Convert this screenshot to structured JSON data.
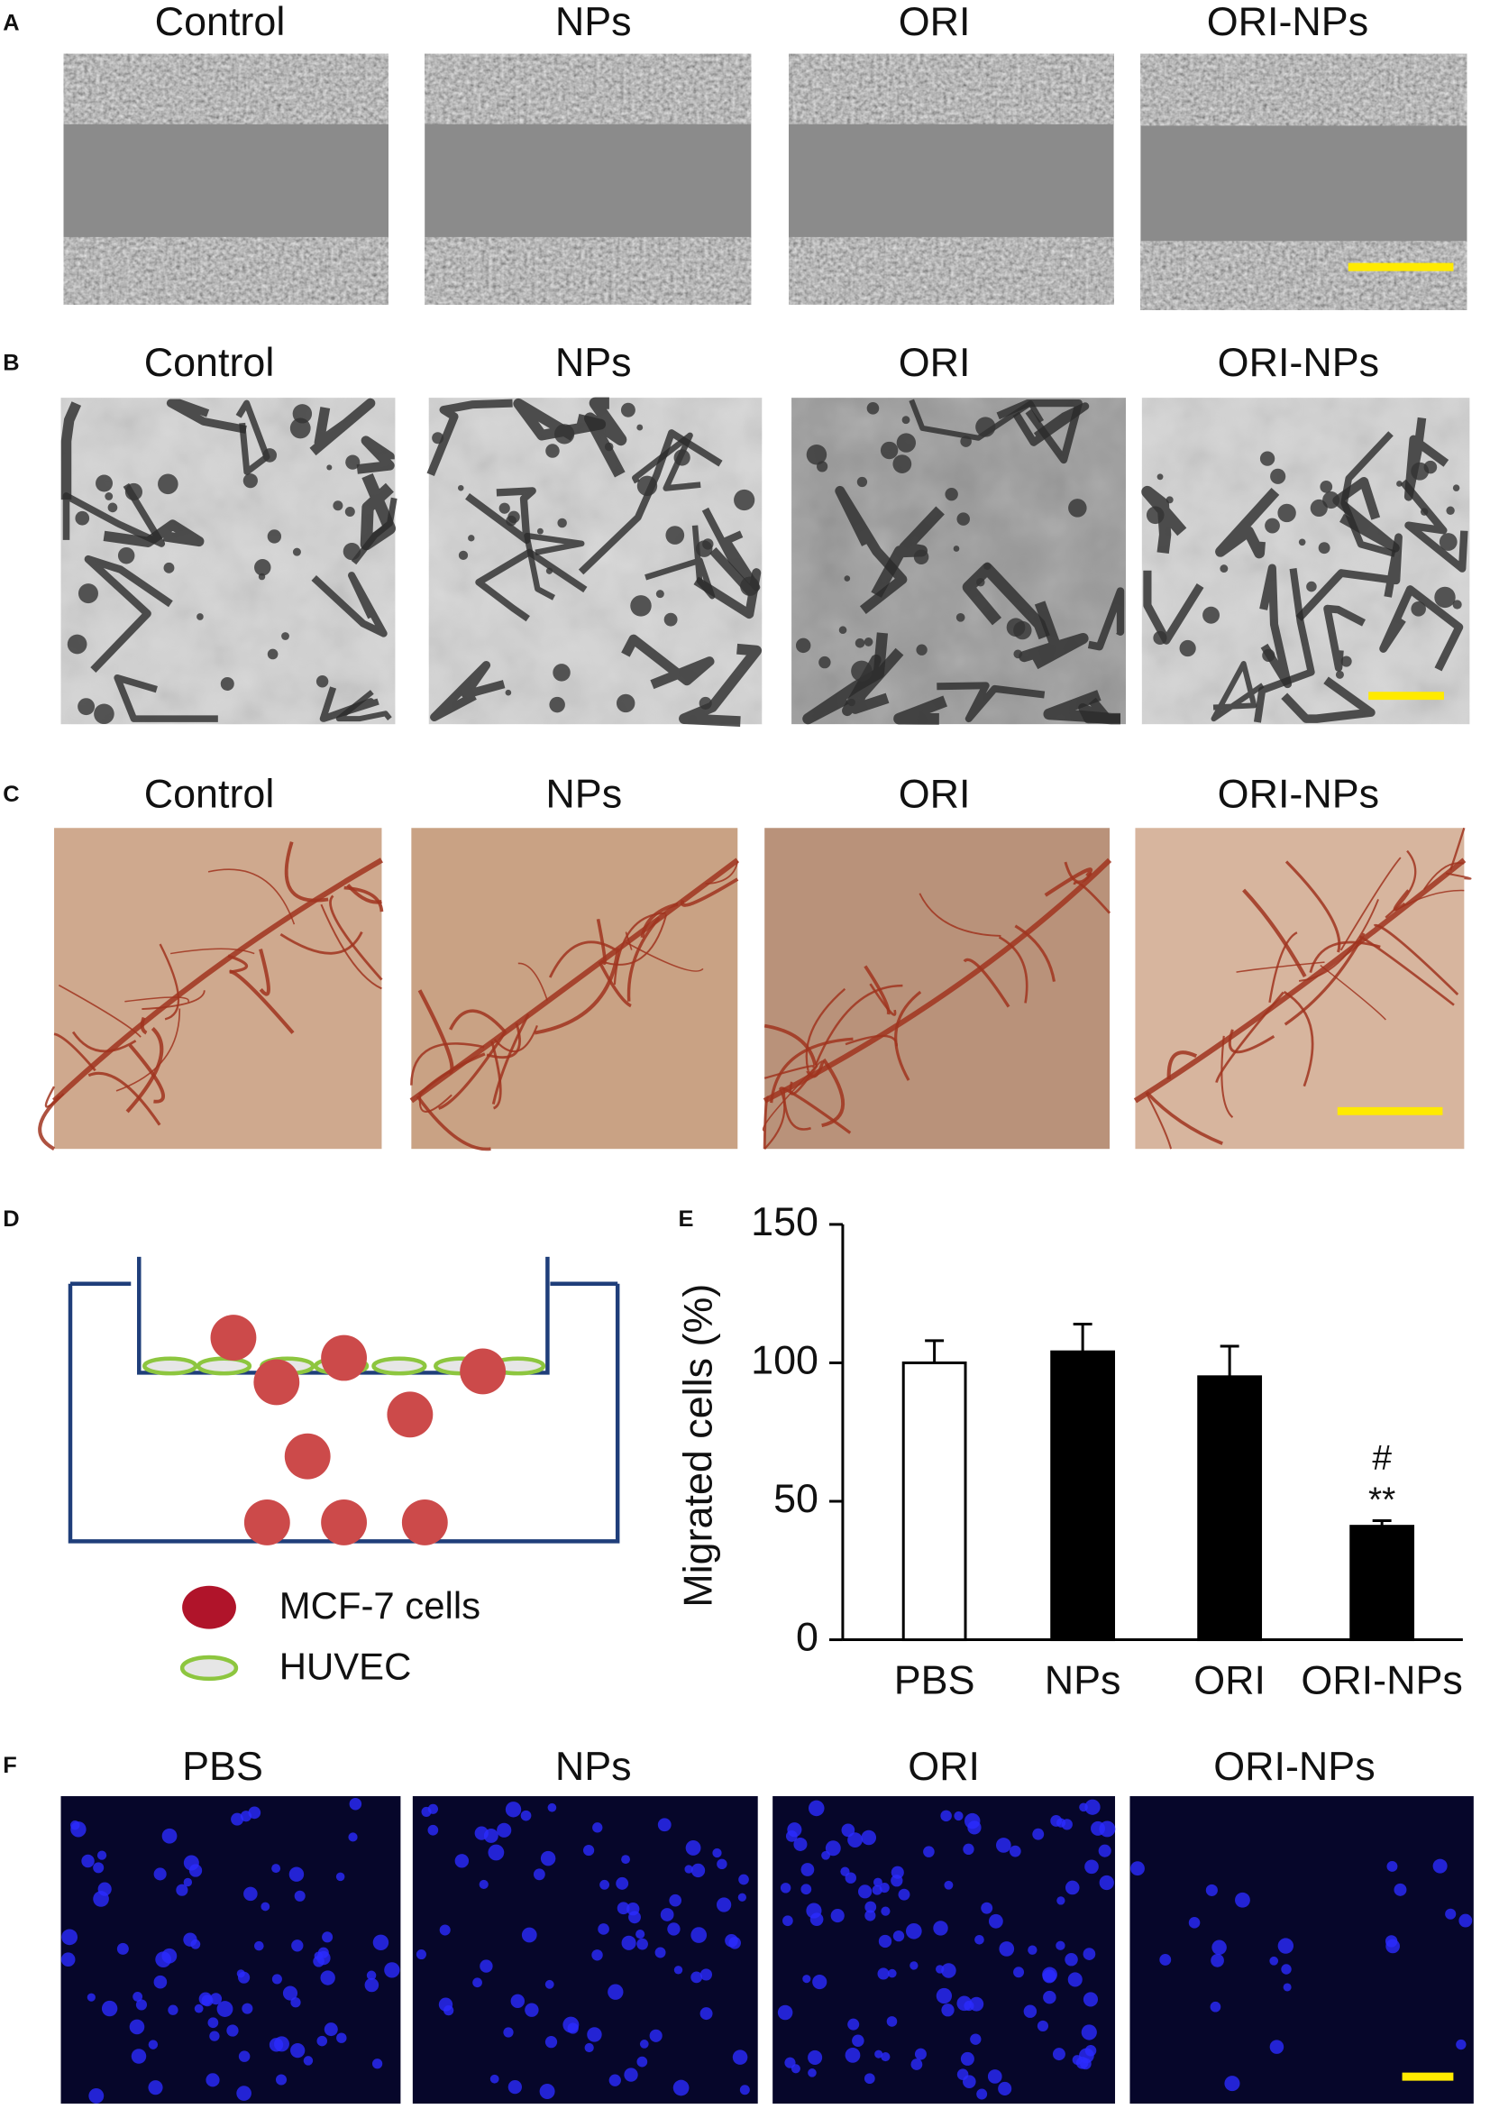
{
  "panel_a": {
    "label": "A",
    "titles": [
      "Control",
      "NPs",
      "ORI",
      "ORI-NPs"
    ]
  },
  "panel_b": {
    "label": "B",
    "titles": [
      "Control",
      "NPs",
      "ORI",
      "ORI-NPs"
    ]
  },
  "panel_c": {
    "label": "C",
    "titles": [
      "Control",
      "NPs",
      "ORI",
      "ORI-NPs"
    ]
  },
  "panel_d": {
    "label": "D",
    "legend": [
      "MCF-7 cells",
      "HUVEC"
    ]
  },
  "chart_data": {
    "type": "bar",
    "label": "E",
    "ylabel": "Migrated cells (%)",
    "categories": [
      "PBS",
      "NPs",
      "ORI",
      "ORI-NPs"
    ],
    "values": [
      100,
      104,
      95,
      41
    ],
    "errors": [
      8,
      10,
      11,
      2
    ],
    "colors": [
      "#ffffff",
      "#000000",
      "#000000",
      "#000000"
    ],
    "annotations": [
      "#",
      "**"
    ],
    "ylim": [
      0,
      150
    ],
    "yticks": [
      0,
      50,
      100,
      150
    ]
  },
  "panel_f": {
    "label": "F",
    "titles": [
      "PBS",
      "NPs",
      "ORI",
      "ORI-NPs"
    ]
  }
}
